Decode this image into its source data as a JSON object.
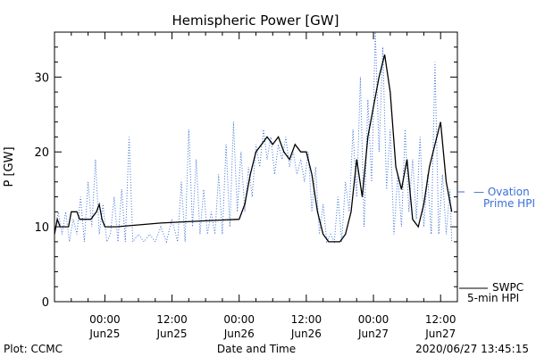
{
  "chart_data": {
    "type": "line",
    "title": "Hemispheric Power [GW]",
    "xlabel": "Date and Time",
    "ylabel": "P [GW]",
    "ylim": [
      0,
      36
    ],
    "yticks": [
      0,
      10,
      20,
      30
    ],
    "xlim": [
      "2020-06-24T15:00",
      "2020-06-27T15:00"
    ],
    "xtick_labels": [
      {
        "time": "00:00",
        "date": "Jun25"
      },
      {
        "time": "12:00",
        "date": "Jun25"
      },
      {
        "time": "00:00",
        "date": "Jun26"
      },
      {
        "time": "12:00",
        "date": "Jun26"
      },
      {
        "time": "00:00",
        "date": "Jun27"
      },
      {
        "time": "12:00",
        "date": "Jun27"
      }
    ],
    "grid": false,
    "series": [
      {
        "name": "Ovation Prime HPI",
        "style": "dotted",
        "color": "#3a6fd8",
        "points": [
          [
            "2020-06-24T15:00",
            9
          ],
          [
            "2020-06-24T15:40",
            12
          ],
          [
            "2020-06-24T16:20",
            9
          ],
          [
            "2020-06-24T17:00",
            12
          ],
          [
            "2020-06-24T17:40",
            8
          ],
          [
            "2020-06-24T18:20",
            11
          ],
          [
            "2020-06-24T19:00",
            9
          ],
          [
            "2020-06-24T19:40",
            14
          ],
          [
            "2020-06-24T20:20",
            8
          ],
          [
            "2020-06-24T21:00",
            16
          ],
          [
            "2020-06-24T21:40",
            10
          ],
          [
            "2020-06-24T22:20",
            19
          ],
          [
            "2020-06-24T23:00",
            9
          ],
          [
            "2020-06-24T23:40",
            13
          ],
          [
            "2020-06-25T00:20",
            8
          ],
          [
            "2020-06-25T01:00",
            9
          ],
          [
            "2020-06-25T01:40",
            14
          ],
          [
            "2020-06-25T02:20",
            8
          ],
          [
            "2020-06-25T03:00",
            15
          ],
          [
            "2020-06-25T03:40",
            8
          ],
          [
            "2020-06-25T04:20",
            22
          ],
          [
            "2020-06-25T05:00",
            8
          ],
          [
            "2020-06-25T06:00",
            9
          ],
          [
            "2020-06-25T07:00",
            8
          ],
          [
            "2020-06-25T08:00",
            9
          ],
          [
            "2020-06-25T09:00",
            8
          ],
          [
            "2020-06-25T10:00",
            10
          ],
          [
            "2020-06-25T11:00",
            8
          ],
          [
            "2020-06-25T12:00",
            11
          ],
          [
            "2020-06-25T13:00",
            8
          ],
          [
            "2020-06-25T13:40",
            16
          ],
          [
            "2020-06-25T14:20",
            8
          ],
          [
            "2020-06-25T15:00",
            23
          ],
          [
            "2020-06-25T15:40",
            10
          ],
          [
            "2020-06-25T16:20",
            19
          ],
          [
            "2020-06-25T17:00",
            9
          ],
          [
            "2020-06-25T17:40",
            15
          ],
          [
            "2020-06-25T18:20",
            9
          ],
          [
            "2020-06-25T19:00",
            12
          ],
          [
            "2020-06-25T19:40",
            9
          ],
          [
            "2020-06-25T20:20",
            17
          ],
          [
            "2020-06-25T21:00",
            9
          ],
          [
            "2020-06-25T21:40",
            21
          ],
          [
            "2020-06-25T22:20",
            10
          ],
          [
            "2020-06-25T23:00",
            24
          ],
          [
            "2020-06-25T23:40",
            12
          ],
          [
            "2020-06-26T00:20",
            20
          ],
          [
            "2020-06-26T01:00",
            12
          ],
          [
            "2020-06-26T01:40",
            18
          ],
          [
            "2020-06-26T02:20",
            14
          ],
          [
            "2020-06-26T03:00",
            21
          ],
          [
            "2020-06-26T03:40",
            18
          ],
          [
            "2020-06-26T04:20",
            23
          ],
          [
            "2020-06-26T05:00",
            19
          ],
          [
            "2020-06-26T05:40",
            22
          ],
          [
            "2020-06-26T06:20",
            17
          ],
          [
            "2020-06-26T07:00",
            21
          ],
          [
            "2020-06-26T07:40",
            19
          ],
          [
            "2020-06-26T08:20",
            22
          ],
          [
            "2020-06-26T09:00",
            18
          ],
          [
            "2020-06-26T09:40",
            20
          ],
          [
            "2020-06-26T10:20",
            17
          ],
          [
            "2020-06-26T11:00",
            19
          ],
          [
            "2020-06-26T11:40",
            16
          ],
          [
            "2020-06-26T12:20",
            20
          ],
          [
            "2020-06-26T13:00",
            12
          ],
          [
            "2020-06-26T13:40",
            18
          ],
          [
            "2020-06-26T14:20",
            9
          ],
          [
            "2020-06-26T15:00",
            13
          ],
          [
            "2020-06-26T15:40",
            8
          ],
          [
            "2020-06-26T16:20",
            9
          ],
          [
            "2020-06-26T17:00",
            8
          ],
          [
            "2020-06-26T17:40",
            14
          ],
          [
            "2020-06-26T18:20",
            8
          ],
          [
            "2020-06-26T19:00",
            16
          ],
          [
            "2020-06-26T19:40",
            12
          ],
          [
            "2020-06-26T20:20",
            23
          ],
          [
            "2020-06-26T21:00",
            14
          ],
          [
            "2020-06-26T21:40",
            30
          ],
          [
            "2020-06-26T22:20",
            10
          ],
          [
            "2020-06-26T23:00",
            27
          ],
          [
            "2020-06-26T23:40",
            16
          ],
          [
            "2020-06-27T00:20",
            36
          ],
          [
            "2020-06-27T01:00",
            20
          ],
          [
            "2020-06-27T01:40",
            34
          ],
          [
            "2020-06-27T02:20",
            15
          ],
          [
            "2020-06-27T03:00",
            23
          ],
          [
            "2020-06-27T03:40",
            9
          ],
          [
            "2020-06-27T04:20",
            17
          ],
          [
            "2020-06-27T05:00",
            10
          ],
          [
            "2020-06-27T05:40",
            23
          ],
          [
            "2020-06-27T06:20",
            12
          ],
          [
            "2020-06-27T07:00",
            19
          ],
          [
            "2020-06-27T07:40",
            11
          ],
          [
            "2020-06-27T08:20",
            22
          ],
          [
            "2020-06-27T09:00",
            10
          ],
          [
            "2020-06-27T09:40",
            17
          ],
          [
            "2020-06-27T10:20",
            9
          ],
          [
            "2020-06-27T11:00",
            32
          ],
          [
            "2020-06-27T11:40",
            9
          ],
          [
            "2020-06-27T12:20",
            17
          ],
          [
            "2020-06-27T13:00",
            9
          ],
          [
            "2020-06-27T13:40",
            15
          ],
          [
            "2020-06-27T14:00",
            8
          ]
        ]
      },
      {
        "name": "SWPC 5-min HPI",
        "style": "solid",
        "color": "#000000",
        "points": [
          [
            "2020-06-24T15:00",
            9
          ],
          [
            "2020-06-24T15:30",
            11
          ],
          [
            "2020-06-24T16:00",
            10
          ],
          [
            "2020-06-24T17:30",
            10
          ],
          [
            "2020-06-24T18:00",
            12
          ],
          [
            "2020-06-24T19:00",
            12
          ],
          [
            "2020-06-24T19:30",
            11
          ],
          [
            "2020-06-24T20:30",
            11
          ],
          [
            "2020-06-24T21:30",
            11
          ],
          [
            "2020-06-24T22:30",
            12
          ],
          [
            "2020-06-24T23:00",
            13
          ],
          [
            "2020-06-24T23:30",
            11
          ],
          [
            "2020-06-25T00:00",
            10
          ],
          [
            "2020-06-25T02:00",
            10
          ],
          [
            "2020-06-25T10:00",
            10.5
          ],
          [
            "2020-06-25T18:00",
            10.8
          ],
          [
            "2020-06-26T00:00",
            11
          ],
          [
            "2020-06-26T01:00",
            13
          ],
          [
            "2020-06-26T02:00",
            17
          ],
          [
            "2020-06-26T03:00",
            20
          ],
          [
            "2020-06-26T04:00",
            21
          ],
          [
            "2020-06-26T05:00",
            22
          ],
          [
            "2020-06-26T06:00",
            21
          ],
          [
            "2020-06-26T07:00",
            22
          ],
          [
            "2020-06-26T08:00",
            20
          ],
          [
            "2020-06-26T09:00",
            19
          ],
          [
            "2020-06-26T10:00",
            21
          ],
          [
            "2020-06-26T11:00",
            20
          ],
          [
            "2020-06-26T12:00",
            20
          ],
          [
            "2020-06-26T13:00",
            17
          ],
          [
            "2020-06-26T14:00",
            12
          ],
          [
            "2020-06-26T15:00",
            9
          ],
          [
            "2020-06-26T16:00",
            8
          ],
          [
            "2020-06-26T18:00",
            8
          ],
          [
            "2020-06-26T19:00",
            9
          ],
          [
            "2020-06-26T20:00",
            12
          ],
          [
            "2020-06-26T21:00",
            19
          ],
          [
            "2020-06-26T22:00",
            14
          ],
          [
            "2020-06-26T23:00",
            22
          ],
          [
            "2020-06-27T00:00",
            26
          ],
          [
            "2020-06-27T01:00",
            30
          ],
          [
            "2020-06-27T02:00",
            33
          ],
          [
            "2020-06-27T03:00",
            28
          ],
          [
            "2020-06-27T04:00",
            18
          ],
          [
            "2020-06-27T05:00",
            15
          ],
          [
            "2020-06-27T06:00",
            19
          ],
          [
            "2020-06-27T07:00",
            11
          ],
          [
            "2020-06-27T08:00",
            10
          ],
          [
            "2020-06-27T09:00",
            13
          ],
          [
            "2020-06-27T10:00",
            18
          ],
          [
            "2020-06-27T11:00",
            21
          ],
          [
            "2020-06-27T12:00",
            24
          ],
          [
            "2020-06-27T13:00",
            16
          ],
          [
            "2020-06-27T14:00",
            12
          ]
        ]
      }
    ]
  },
  "legend": {
    "ovation_line1": "— Ovation",
    "ovation_line2": "Prime HPI",
    "swpc_line1": "SWPC",
    "swpc_line2": "5-min HPI"
  },
  "footer": {
    "left": "Plot: CCMC",
    "center": "Date and Time",
    "right": "2020/06/27 13:45:15"
  }
}
